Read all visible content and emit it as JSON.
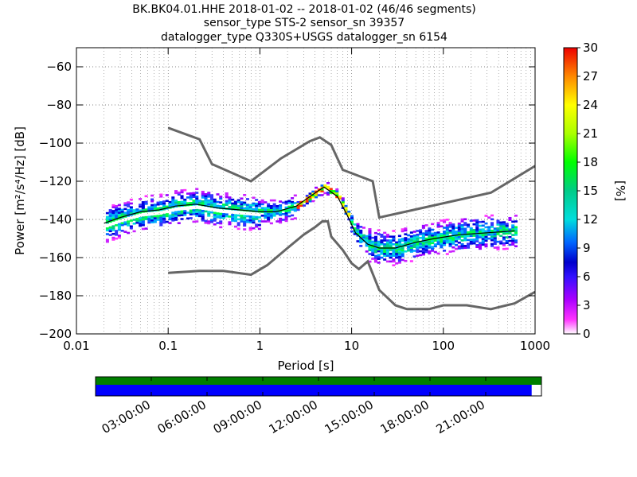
{
  "title": {
    "line1": "BK.BK04.01.HHE   2018-01-02 -- 2018-01-02  (46/46 segments)",
    "line2": "sensor_type STS-2 sensor_sn 39357",
    "line3": "datalogger_type Q330S+USGS datalogger_sn 6154"
  },
  "chart_data": {
    "type": "heatmap",
    "xlabel": "Period [s]",
    "ylabel": "Power [m²/s⁴/Hz] [dB]",
    "xscale": "log",
    "xlim": [
      0.01,
      1000
    ],
    "ylim": [
      -200,
      -50
    ],
    "x_ticks": [
      "0.01",
      "0.1",
      "1",
      "10",
      "100",
      "1000"
    ],
    "y_ticks": [
      "−60",
      "−80",
      "−100",
      "−120",
      "−140",
      "−160",
      "−180",
      "−200"
    ],
    "grid": true,
    "colorbar": {
      "label": "[%]",
      "range": [
        0,
        30
      ],
      "ticks": [
        "0",
        "3",
        "6",
        "9",
        "12",
        "15",
        "18",
        "21",
        "24",
        "27",
        "30"
      ],
      "colormap": "pqlx"
    },
    "series": [
      {
        "x": [
          0.02,
          0.03,
          0.05,
          0.08,
          0.12,
          0.2,
          0.35,
          0.6,
          1,
          1.5,
          2.5,
          3.5,
          5,
          7,
          9,
          11,
          15,
          20,
          30,
          50,
          80,
          150,
          300,
          600
        ],
        "y": [
          -142,
          -139,
          -136,
          -135,
          -133,
          -132,
          -134,
          -135,
          -136,
          -136,
          -133,
          -128,
          -123,
          -128,
          -138,
          -147,
          -153,
          -155,
          -155,
          -152,
          -150,
          -148,
          -147,
          -146
        ]
      },
      {
        "x": [
          0.1,
          0.22,
          0.3,
          0.8,
          1.7,
          3.5,
          4.5,
          6,
          8,
          17,
          20,
          330,
          1000
        ],
        "y": [
          -92,
          -98,
          -111,
          -120,
          -108,
          -99,
          -97,
          -101,
          -114,
          -120,
          -139,
          -126,
          -112
        ]
      },
      {
        "x": [
          0.1,
          0.22,
          0.4,
          0.8,
          1.2,
          2,
          3,
          4,
          4.8,
          5.5,
          6,
          8,
          10,
          12,
          15,
          20,
          30,
          40,
          70,
          100,
          180,
          330,
          600,
          1000
        ],
        "y": [
          -168,
          -167,
          -167,
          -169,
          -164,
          -155,
          -148,
          -144,
          -141,
          -141,
          -149,
          -156,
          -163,
          -166,
          -162,
          -177,
          -185,
          -187,
          -187,
          -185,
          -185,
          -187,
          -184,
          -178
        ]
      }
    ]
  },
  "timeline": {
    "ticks": [
      "03:00:00",
      "06:00:00",
      "09:00:00",
      "12:00:00",
      "15:00:00",
      "18:00:00",
      "21:00:00"
    ],
    "coverage_fraction": 0.978,
    "top_color": "#007f00",
    "bottom_color": "#0000ff"
  },
  "colors": {
    "noise_model": "#666666",
    "mean": "#000000"
  }
}
